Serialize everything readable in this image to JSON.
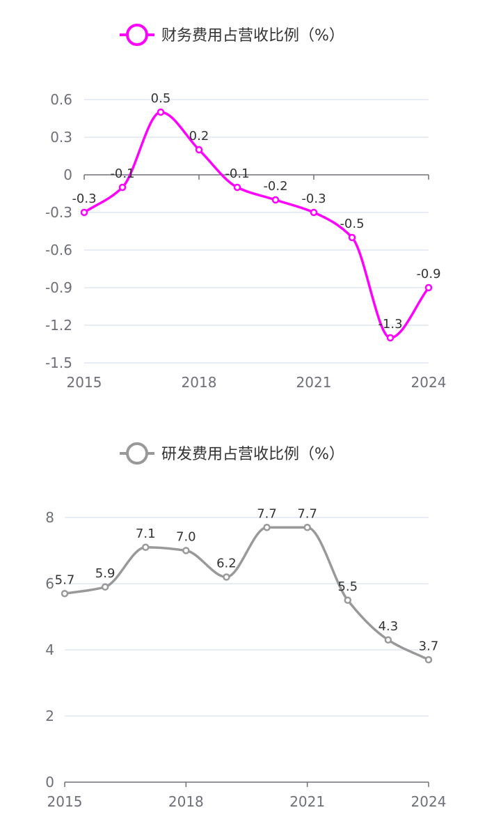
{
  "chart_data": [
    {
      "type": "line",
      "smooth": true,
      "legend": "财务费用占营收比例（%）",
      "legend_position": "top-center",
      "color": "#ff00ff",
      "categories": [
        "2015",
        "2016",
        "2017",
        "2018",
        "2019",
        "2020",
        "2021",
        "2022",
        "2023",
        "2024"
      ],
      "x_tick_labels": [
        "2015",
        "2018",
        "2021",
        "2024"
      ],
      "values": [
        -0.3,
        -0.1,
        0.5,
        0.2,
        -0.1,
        -0.2,
        -0.3,
        -0.5,
        -1.3,
        -0.9
      ],
      "value_labels": [
        "-0.3",
        "-0.1",
        "0.5",
        "0.2",
        "-0.1",
        "-0.2",
        "-0.3",
        "-0.5",
        "-1.3",
        "-0.9"
      ],
      "y_ticks": [
        "0.6",
        "0.3",
        "0",
        "-0.3",
        "-0.6",
        "-0.9",
        "-1.2",
        "-1.5"
      ],
      "ylim": [
        -1.5,
        0.6
      ],
      "grid": true
    },
    {
      "type": "line",
      "smooth": true,
      "legend": "研发费用占营收比例（%）",
      "legend_position": "top-center",
      "color": "#999999",
      "categories": [
        "2015",
        "2016",
        "2017",
        "2018",
        "2019",
        "2020",
        "2021",
        "2022",
        "2023",
        "2024"
      ],
      "x_tick_labels": [
        "2015",
        "2018",
        "2021",
        "2024"
      ],
      "values": [
        5.7,
        5.9,
        7.1,
        7.0,
        6.2,
        7.7,
        7.7,
        5.5,
        4.3,
        3.7
      ],
      "value_labels": [
        "5.7",
        "5.9",
        "7.1",
        "7.0",
        "6.2",
        "7.7",
        "7.7",
        "5.5",
        "4.3",
        "3.7"
      ],
      "y_ticks": [
        "8",
        "6",
        "4",
        "2",
        "0"
      ],
      "ylim": [
        0,
        8
      ],
      "grid": true
    }
  ]
}
